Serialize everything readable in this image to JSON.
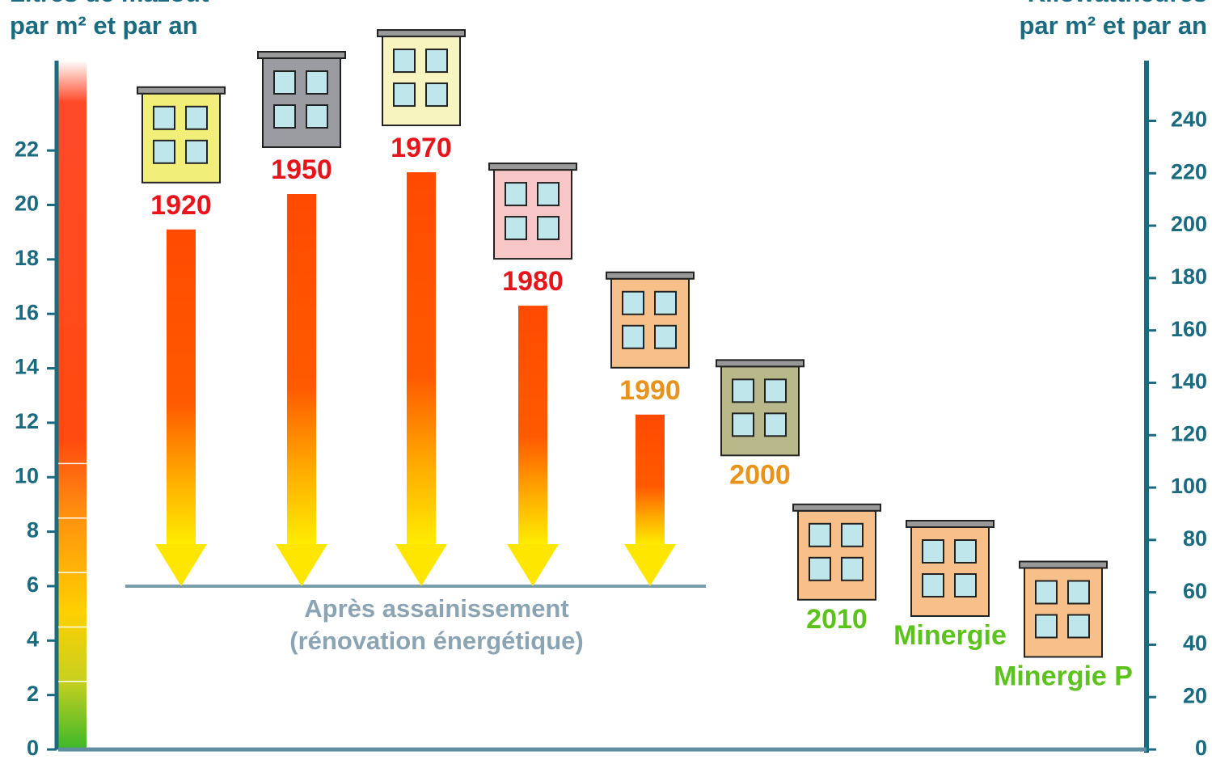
{
  "chart_data": {
    "type": "arrow-bar",
    "left_title": [
      "Litres de mazout",
      "par m² et par an"
    ],
    "right_title": [
      "Kilowattheures",
      "par m² et par an"
    ],
    "categories": [
      "1920",
      "1950",
      "1970",
      "1980",
      "1990",
      "2000",
      "2010",
      "Minergie",
      "Minergie P"
    ],
    "values": [
      19.1,
      20.4,
      21.2,
      16.3,
      12.3,
      10.8,
      5.5,
      4.9,
      3.4
    ],
    "arrows": [
      true,
      true,
      true,
      true,
      true,
      false,
      false,
      false,
      false
    ],
    "label_colors": [
      "#e8141b",
      "#e8141b",
      "#e8141b",
      "#e8141b",
      "#e8931a",
      "#e8931a",
      "#5cc21c",
      "#5cc21c",
      "#5cc21c"
    ],
    "building_colors": [
      "#f2ee7a",
      "#9a9ca2",
      "#f8f4c0",
      "#f7c6c6",
      "#f7c08a",
      "#b9b88a",
      "#f7c08a",
      "#f7c08a",
      "#f7c08a"
    ],
    "target": 6,
    "target_label": [
      "Après assainissement",
      "(rénovation énergétique)"
    ],
    "ylim": [
      0,
      25.3
    ],
    "yticks": [
      0,
      2,
      4,
      6,
      8,
      10,
      12,
      14,
      16,
      18,
      20,
      22
    ],
    "y2lim": [
      0,
      263
    ],
    "y2ticks": [
      0,
      20,
      40,
      60,
      80,
      100,
      120,
      140,
      160,
      180,
      200,
      220,
      240
    ],
    "axis_color": "#1a6a80"
  }
}
